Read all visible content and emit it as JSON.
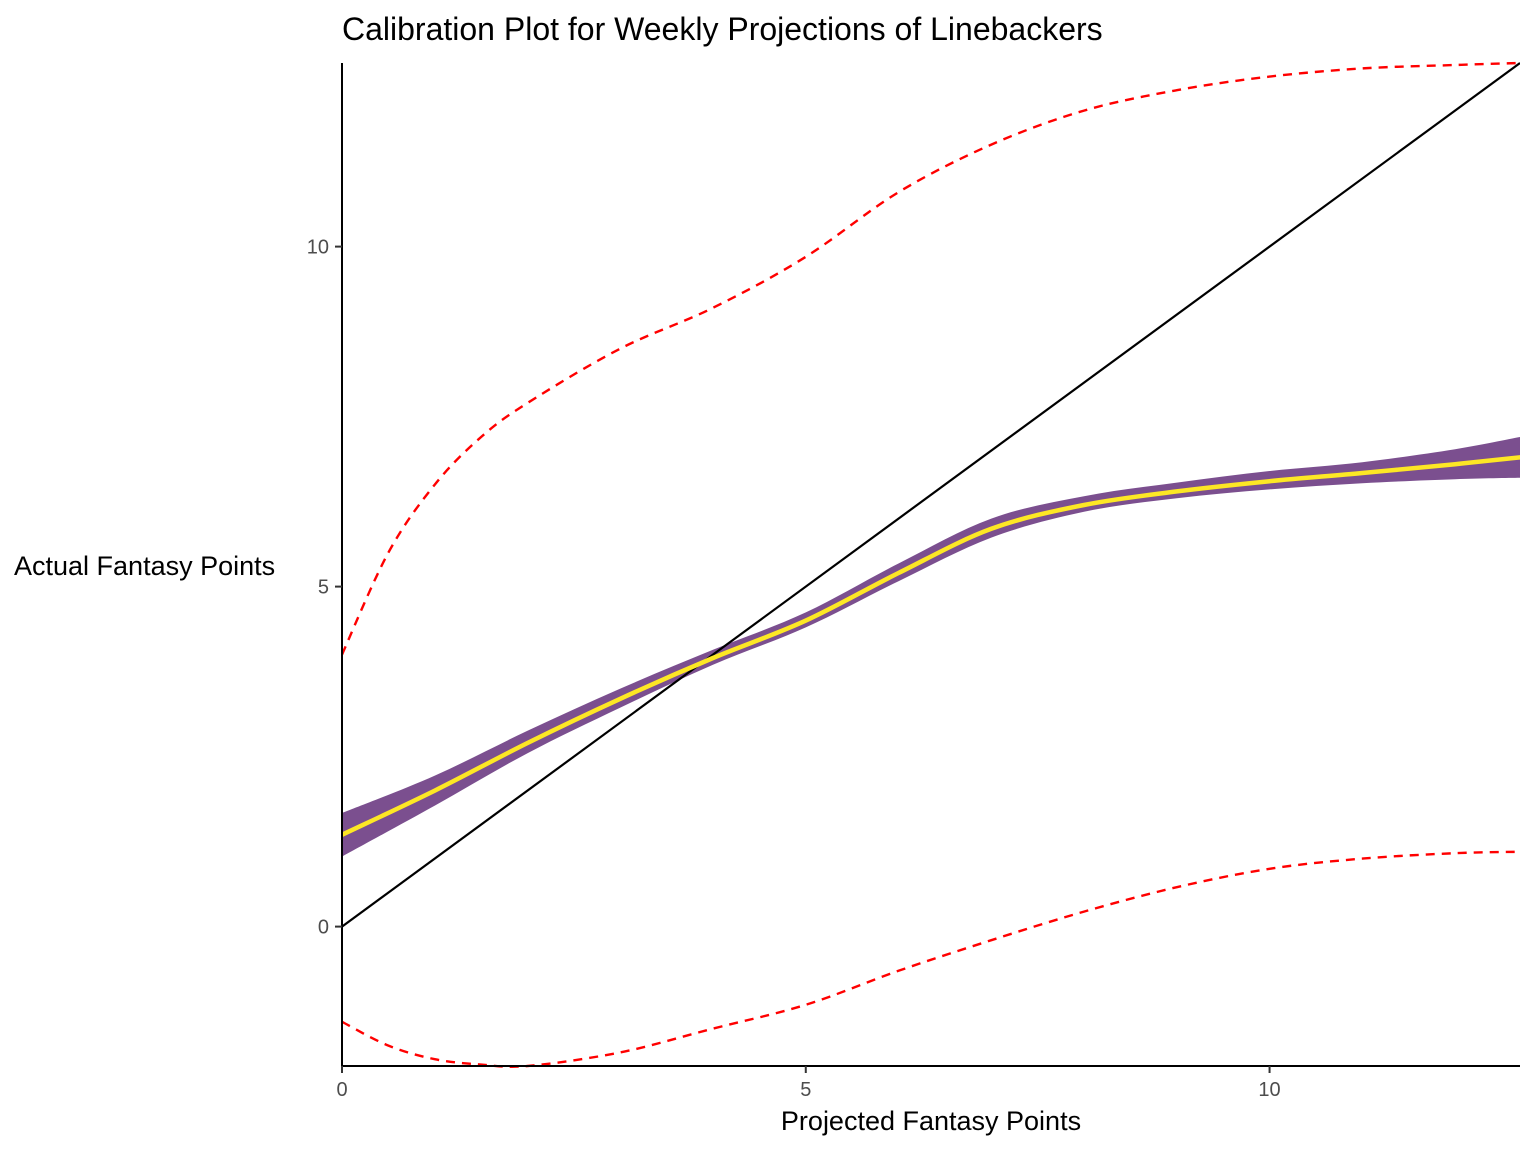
{
  "chart_data": {
    "type": "line",
    "title": "Calibration Plot for Weekly Projections of Linebackers",
    "xlabel": "Projected Fantasy Points",
    "ylabel": "Actual Fantasy Points",
    "xlim": [
      0,
      12.7
    ],
    "ylim": [
      -2.05,
      12.7
    ],
    "x_ticks": [
      {
        "value": 0,
        "label": "0"
      },
      {
        "value": 5,
        "label": "5"
      },
      {
        "value": 10,
        "label": "10"
      }
    ],
    "y_ticks": [
      {
        "value": 0,
        "label": "0"
      },
      {
        "value": 5,
        "label": "5"
      },
      {
        "value": 10,
        "label": "10"
      }
    ],
    "grid": false,
    "legend": "none",
    "series": [
      {
        "role": "identity",
        "color": "#000000",
        "x": [
          0,
          12.7
        ],
        "y": [
          0,
          12.7
        ]
      },
      {
        "role": "fit",
        "color": "#FDE725",
        "x": [
          0,
          1,
          2,
          3,
          4,
          5,
          6,
          7,
          8,
          9,
          10,
          11,
          12,
          12.7
        ],
        "y": [
          1.35,
          2.0,
          2.7,
          3.35,
          3.95,
          4.5,
          5.2,
          5.85,
          6.2,
          6.4,
          6.55,
          6.67,
          6.8,
          6.9
        ]
      },
      {
        "role": "confidence-band",
        "color": "#7B4F8F",
        "x": [
          0,
          1,
          2,
          3,
          4,
          5,
          6,
          7,
          8,
          9,
          10,
          11,
          12,
          12.7
        ],
        "lower": [
          1.03,
          1.78,
          2.55,
          3.22,
          3.85,
          4.4,
          5.08,
          5.72,
          6.1,
          6.3,
          6.43,
          6.52,
          6.58,
          6.6
        ],
        "upper": [
          1.67,
          2.22,
          2.88,
          3.5,
          4.07,
          4.62,
          5.34,
          6.0,
          6.33,
          6.53,
          6.7,
          6.83,
          7.02,
          7.2
        ]
      },
      {
        "role": "upper-limit",
        "color": "#FF0000",
        "style": "dashed",
        "x": [
          0,
          0.5,
          1,
          1.5,
          2,
          3,
          4,
          5,
          6,
          7,
          8,
          9,
          10,
          11,
          12,
          12.7
        ],
        "y": [
          4.0,
          5.5,
          6.5,
          7.2,
          7.7,
          8.5,
          9.1,
          9.85,
          10.8,
          11.5,
          12.0,
          12.3,
          12.5,
          12.62,
          12.67,
          12.7
        ]
      },
      {
        "role": "lower-limit",
        "color": "#FF0000",
        "style": "dashed",
        "x": [
          0,
          0.5,
          1,
          1.5,
          2,
          3,
          4,
          5,
          6,
          7,
          8,
          9,
          10,
          11,
          12,
          12.7
        ],
        "y": [
          -1.4,
          -1.75,
          -1.95,
          -2.03,
          -2.05,
          -1.85,
          -1.5,
          -1.15,
          -0.65,
          -0.2,
          0.22,
          0.58,
          0.85,
          1.0,
          1.08,
          1.1
        ]
      }
    ]
  }
}
